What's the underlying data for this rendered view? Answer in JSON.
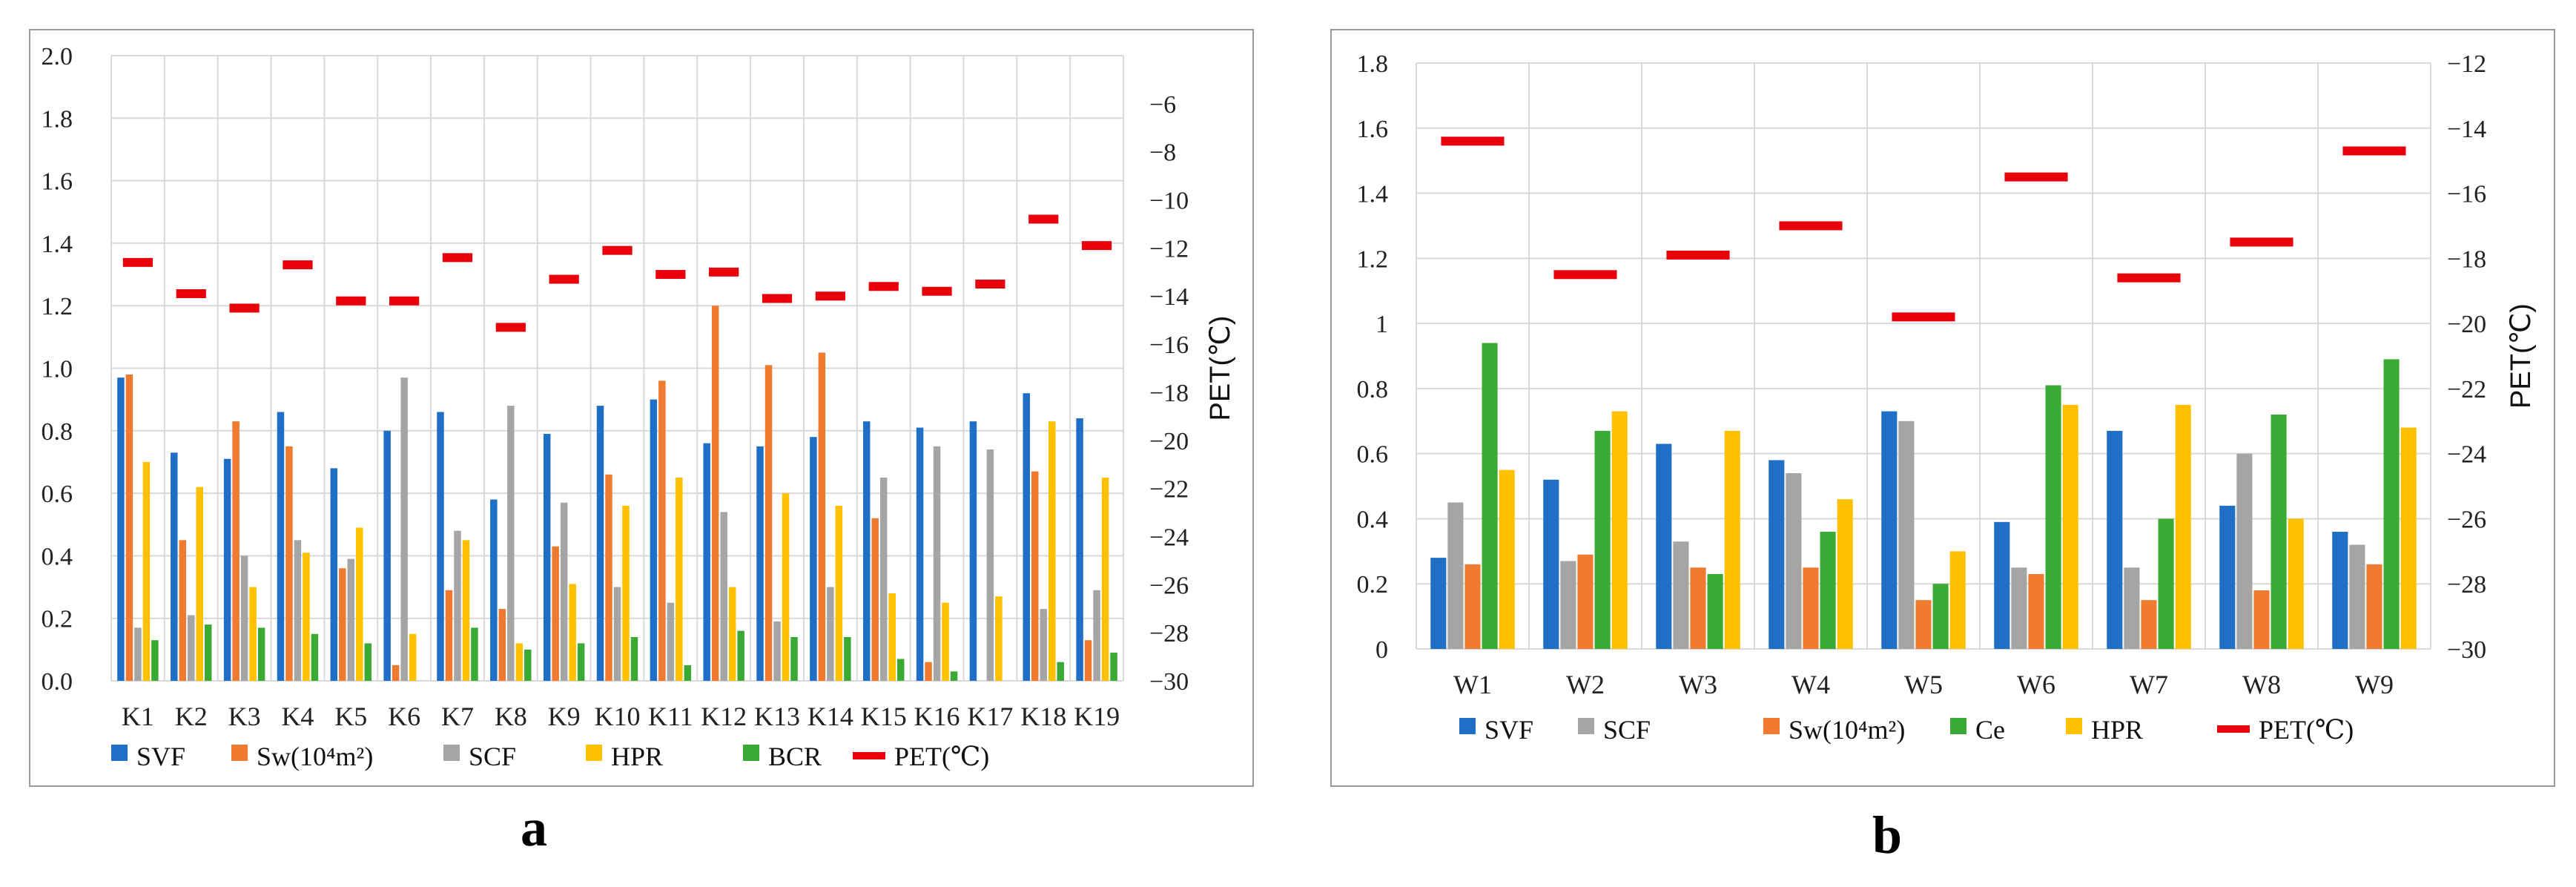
{
  "figure": {
    "label_a": "a",
    "label_b": "b"
  },
  "chart_data": [
    {
      "id": "a",
      "type": "bar",
      "categories": [
        "K1",
        "K2",
        "K3",
        "K4",
        "K5",
        "K6",
        "K7",
        "K8",
        "K9",
        "K10",
        "K11",
        "K12",
        "K13",
        "K14",
        "K15",
        "K16",
        "K17",
        "K18",
        "K19"
      ],
      "series": [
        {
          "name": "SVF",
          "color": "#1f6fc6",
          "values": [
            0.97,
            0.73,
            0.71,
            0.86,
            0.68,
            0.8,
            0.86,
            0.58,
            0.79,
            0.88,
            0.9,
            0.76,
            0.75,
            0.78,
            0.83,
            0.81,
            0.83,
            0.92,
            0.84
          ]
        },
        {
          "name": "Sw(10⁴m²)",
          "color": "#f07a30",
          "values": [
            0.98,
            0.45,
            0.83,
            0.75,
            0.36,
            0.05,
            0.29,
            0.23,
            0.43,
            0.66,
            0.96,
            1.2,
            1.01,
            1.05,
            0.52,
            0.06,
            0.0,
            0.67,
            0.13
          ]
        },
        {
          "name": "SCF",
          "color": "#a5a5a5",
          "values": [
            0.17,
            0.21,
            0.4,
            0.45,
            0.39,
            0.97,
            0.48,
            0.88,
            0.57,
            0.3,
            0.25,
            0.54,
            0.19,
            0.3,
            0.65,
            0.75,
            0.74,
            0.23,
            0.29
          ]
        },
        {
          "name": "HPR",
          "color": "#ffc000",
          "values": [
            0.7,
            0.62,
            0.3,
            0.41,
            0.49,
            0.15,
            0.45,
            0.12,
            0.31,
            0.56,
            0.65,
            0.3,
            0.6,
            0.56,
            0.28,
            0.25,
            0.27,
            0.83,
            0.65
          ]
        },
        {
          "name": "BCR",
          "color": "#3aaa35",
          "values": [
            0.13,
            0.18,
            0.17,
            0.15,
            0.12,
            0.0,
            0.17,
            0.1,
            0.12,
            0.14,
            0.05,
            0.16,
            0.14,
            0.14,
            0.07,
            0.03,
            0.0,
            0.06,
            0.09
          ]
        }
      ],
      "pet": {
        "name": "PET(℃)",
        "color": "#e8000b",
        "values": [
          -12.6,
          -13.9,
          -14.5,
          -12.7,
          -14.2,
          -14.2,
          -12.4,
          -15.3,
          -13.3,
          -12.1,
          -13.1,
          -13.0,
          -14.1,
          -14.0,
          -13.6,
          -13.8,
          -13.5,
          -10.8,
          -11.9
        ]
      },
      "ylim": [
        0,
        2.0
      ],
      "yticks": [
        "2.0",
        "1.8",
        "1.6",
        "1.4",
        "1.2",
        "1.0",
        "0.8",
        "0.6",
        "0.4",
        "0.2",
        "0.0"
      ],
      "y2lim": [
        -30,
        -4
      ],
      "y2ticks": [
        "−6",
        "−8",
        "−10",
        "−12",
        "−14",
        "−16",
        "−18",
        "−20",
        "−22",
        "−24",
        "−26",
        "−28",
        "−30"
      ],
      "y2label": "PET(℃)",
      "legend": [
        "SVF",
        "Sw(10⁴m²)",
        "SCF",
        "HPR",
        "BCR",
        "PET(℃)"
      ]
    },
    {
      "id": "b",
      "type": "bar",
      "categories": [
        "W1",
        "W2",
        "W3",
        "W4",
        "W5",
        "W6",
        "W7",
        "W8",
        "W9"
      ],
      "series": [
        {
          "name": "SVF",
          "color": "#1f6fc6",
          "values": [
            0.28,
            0.52,
            0.63,
            0.58,
            0.73,
            0.39,
            0.67,
            0.44,
            0.36
          ]
        },
        {
          "name": "SCF",
          "color": "#a5a5a5",
          "values": [
            0.45,
            0.27,
            0.33,
            0.54,
            0.7,
            0.25,
            0.25,
            0.6,
            0.32
          ]
        },
        {
          "name": "Sw(10⁴m²)",
          "color": "#f07a30",
          "values": [
            0.26,
            0.29,
            0.25,
            0.25,
            0.15,
            0.23,
            0.15,
            0.18,
            0.26
          ]
        },
        {
          "name": "Ce",
          "color": "#3aaa35",
          "values": [
            0.94,
            0.67,
            0.23,
            0.36,
            0.2,
            0.81,
            0.4,
            0.72,
            0.89
          ]
        },
        {
          "name": "HPR",
          "color": "#ffc000",
          "values": [
            0.55,
            0.73,
            0.67,
            0.46,
            0.3,
            0.75,
            0.75,
            0.4,
            0.68
          ]
        }
      ],
      "pet": {
        "name": "PET(℃)",
        "color": "#e8000b",
        "values": [
          -14.4,
          -18.5,
          -17.9,
          -17.0,
          -19.8,
          -15.5,
          -18.6,
          -17.5,
          -14.7
        ]
      },
      "ylim": [
        0,
        1.8
      ],
      "yticks": [
        "1.8",
        "1.6",
        "1.4",
        "1.2",
        "1",
        "0.8",
        "0.6",
        "0.4",
        "0.2",
        "0"
      ],
      "y2lim": [
        -30,
        -12
      ],
      "y2ticks": [
        "−12",
        "−14",
        "−16",
        "−18",
        "−20",
        "−22",
        "−24",
        "−26",
        "−28",
        "−30"
      ],
      "y2label": "PET(℃)",
      "legend": [
        "SVF",
        "SCF",
        "Sw(10⁴m²)",
        "Ce",
        "HPR",
        "PET(℃)"
      ]
    }
  ]
}
